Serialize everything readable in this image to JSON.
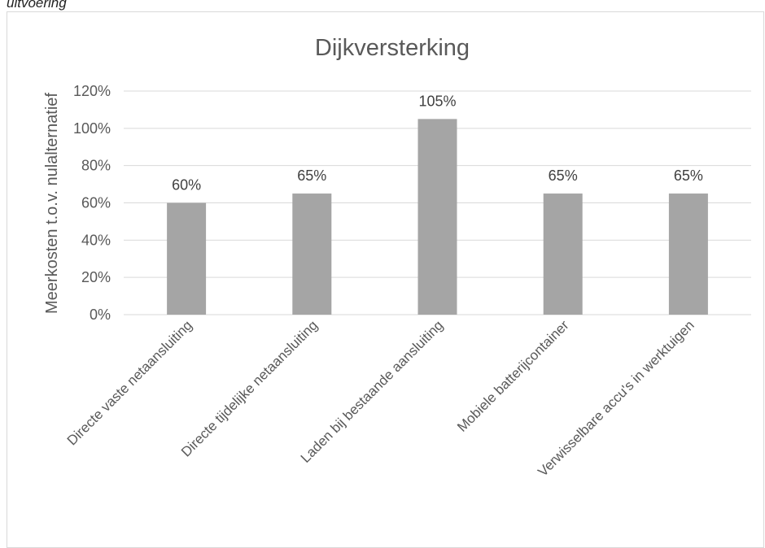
{
  "caption": "uitvoering",
  "chart_data": {
    "type": "bar",
    "title": "Dijkversterking",
    "xlabel": "",
    "ylabel": "Meerkosten t.o.v. nulalternatief",
    "categories": [
      "Directe vaste netaansluiting",
      "Directe tijdelijke netaansluiting",
      "Laden bij bestaande aansluiting",
      "Mobiele batterijcontainer",
      "Verwisselbare accu's in werktuigen"
    ],
    "values": [
      60,
      65,
      105,
      65,
      65
    ],
    "data_labels": [
      "60%",
      "65%",
      "105%",
      "65%",
      "65%"
    ],
    "yticks": [
      "0%",
      "20%",
      "40%",
      "60%",
      "80%",
      "100%",
      "120%"
    ],
    "ylim": [
      0,
      120
    ],
    "grid": true,
    "legend": "none",
    "colors": {
      "bar": "#a5a5a5",
      "grid": "#d9d9d9",
      "text": "#595959"
    }
  }
}
